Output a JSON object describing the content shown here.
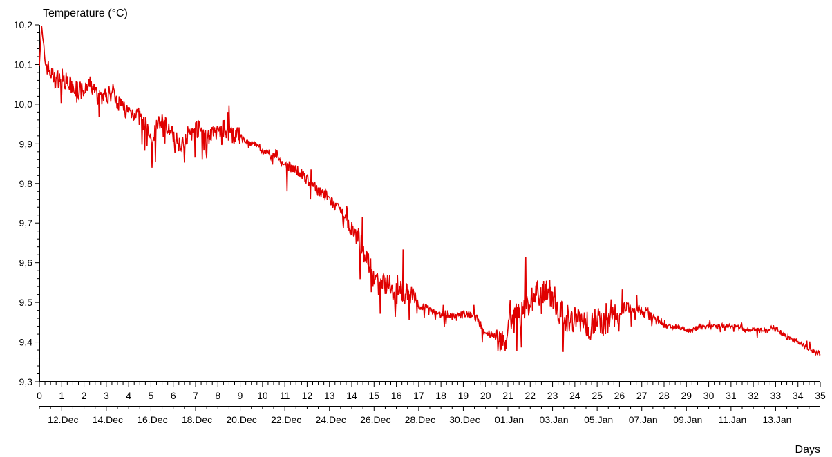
{
  "chart_data": {
    "type": "line",
    "title": "",
    "ylabel": "Temperature (°C)",
    "xlabel": "Days",
    "xlim": [
      0,
      35
    ],
    "ylim": [
      9.3,
      10.2
    ],
    "y_ticks": [
      "9,3",
      "9,4",
      "9,5",
      "9,6",
      "9,7",
      "9,8",
      "9,9",
      "10,0",
      "10,1",
      "10,2"
    ],
    "x_ticks": [
      "0",
      "1",
      "2",
      "3",
      "4",
      "5",
      "6",
      "7",
      "8",
      "9",
      "10",
      "11",
      "12",
      "13",
      "14",
      "15",
      "16",
      "17",
      "18",
      "19",
      "20",
      "21",
      "22",
      "23",
      "24",
      "25",
      "26",
      "27",
      "28",
      "29",
      "30",
      "31",
      "32",
      "33",
      "34",
      "35"
    ],
    "date_ticks": [
      {
        "day": 1,
        "label": "12.Dec"
      },
      {
        "day": 3,
        "label": "14.Dec"
      },
      {
        "day": 5,
        "label": "16.Dec"
      },
      {
        "day": 7,
        "label": "18.Dec"
      },
      {
        "day": 9,
        "label": "20.Dec"
      },
      {
        "day": 11,
        "label": "22.Dec"
      },
      {
        "day": 13,
        "label": "24.Dec"
      },
      {
        "day": 15,
        "label": "26.Dec"
      },
      {
        "day": 17,
        "label": "28.Dec"
      },
      {
        "day": 19,
        "label": "30.Dec"
      },
      {
        "day": 21,
        "label": "01.Jan"
      },
      {
        "day": 23,
        "label": "03.Jan"
      },
      {
        "day": 25,
        "label": "05.Jan"
      },
      {
        "day": 27,
        "label": "07.Jan"
      },
      {
        "day": 29,
        "label": "09.Jan"
      },
      {
        "day": 31,
        "label": "11.Jan"
      },
      {
        "day": 33,
        "label": "13.Jan"
      }
    ],
    "grid": false,
    "legend": "none",
    "series_color": "#e00000",
    "series": [
      {
        "name": "",
        "x": [
          0,
          0.1,
          0.2,
          0.3,
          0.5,
          0.7,
          1.0,
          1.3,
          1.6,
          2.0,
          2.3,
          2.6,
          3.0,
          3.3,
          3.6,
          4.0,
          4.3,
          4.6,
          4.9,
          5.0,
          5.2,
          5.5,
          5.8,
          6.0,
          6.3,
          6.6,
          7.0,
          7.3,
          7.6,
          8.0,
          8.3,
          8.6,
          9.0,
          9.3,
          9.6,
          10.0,
          10.3,
          10.6,
          11.0,
          11.3,
          11.6,
          12.0,
          12.3,
          12.6,
          13.0,
          13.3,
          13.6,
          14.0,
          14.3,
          14.6,
          15.0,
          15.3,
          15.6,
          16.0,
          16.3,
          16.6,
          17.0,
          17.3,
          17.6,
          18.0,
          18.3,
          18.6,
          19.0,
          19.3,
          19.6,
          20.0,
          20.3,
          20.6,
          20.9,
          21.0,
          21.3,
          21.6,
          22.0,
          22.3,
          22.6,
          23.0,
          23.3,
          23.6,
          24.0,
          24.3,
          24.6,
          25.0,
          25.3,
          25.6,
          26.0,
          26.3,
          26.6,
          27.0,
          27.3,
          27.6,
          28.0,
          28.3,
          28.6,
          29.0,
          29.3,
          29.6,
          30.0,
          30.3,
          30.6,
          31.0,
          31.3,
          31.6,
          32.0,
          32.3,
          32.6,
          33.0,
          33.3,
          33.6,
          34.0,
          34.3,
          34.6,
          35.0
        ],
        "y": [
          10.12,
          10.19,
          10.13,
          10.1,
          10.08,
          10.06,
          10.07,
          10.05,
          10.04,
          10.03,
          10.05,
          10.02,
          10.02,
          10.03,
          10.0,
          9.98,
          9.98,
          9.96,
          9.93,
          9.9,
          9.94,
          9.96,
          9.94,
          9.92,
          9.9,
          9.92,
          9.94,
          9.93,
          9.92,
          9.93,
          9.94,
          9.92,
          9.92,
          9.9,
          9.9,
          9.88,
          9.88,
          9.87,
          9.84,
          9.84,
          9.83,
          9.81,
          9.79,
          9.78,
          9.76,
          9.74,
          9.72,
          9.68,
          9.66,
          9.62,
          9.56,
          9.54,
          9.55,
          9.52,
          9.53,
          9.52,
          9.49,
          9.49,
          9.48,
          9.47,
          9.47,
          9.46,
          9.47,
          9.47,
          9.46,
          9.42,
          9.42,
          9.41,
          9.4,
          9.42,
          9.46,
          9.48,
          9.5,
          9.52,
          9.53,
          9.52,
          9.48,
          9.46,
          9.46,
          9.45,
          9.44,
          9.46,
          9.45,
          9.46,
          9.48,
          9.49,
          9.48,
          9.48,
          9.47,
          9.46,
          9.44,
          9.44,
          9.44,
          9.43,
          9.43,
          9.44,
          9.44,
          9.44,
          9.44,
          9.44,
          9.44,
          9.43,
          9.43,
          9.43,
          9.43,
          9.44,
          9.42,
          9.41,
          9.4,
          9.39,
          9.38,
          9.37
        ]
      }
    ]
  }
}
